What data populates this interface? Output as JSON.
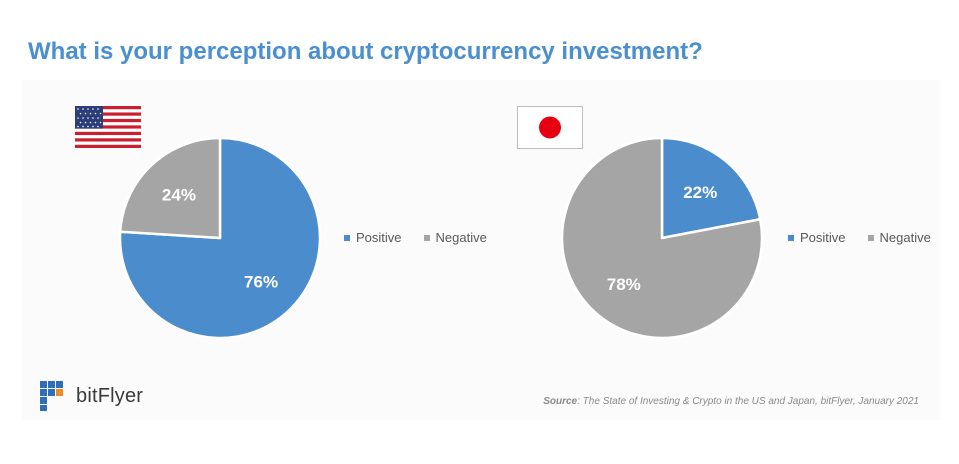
{
  "title": "What is your perception about cryptocurrency investment?",
  "colors": {
    "positive": "#4a8ccc",
    "negative": "#a5a5a5",
    "title": "#4a8fd0"
  },
  "chart_data": [
    {
      "type": "pie",
      "flag": "us-flag-icon",
      "slices": [
        {
          "label": "Positive",
          "value": 76,
          "value_label": "76%"
        },
        {
          "label": "Negative",
          "value": 24,
          "value_label": "24%"
        }
      ],
      "legend": [
        "Positive",
        "Negative"
      ],
      "legend_position": "right"
    },
    {
      "type": "pie",
      "flag": "japan-flag-icon",
      "slices": [
        {
          "label": "Positive",
          "value": 22,
          "value_label": "22%"
        },
        {
          "label": "Negative",
          "value": 78,
          "value_label": "78%"
        }
      ],
      "legend": [
        "Positive",
        "Negative"
      ],
      "legend_position": "right"
    }
  ],
  "logo": {
    "text": "bitFlyer"
  },
  "source": {
    "label": "Source",
    "text": ": The State of Investing & Crypto in the US and Japan, bitFlyer, January 2021"
  }
}
